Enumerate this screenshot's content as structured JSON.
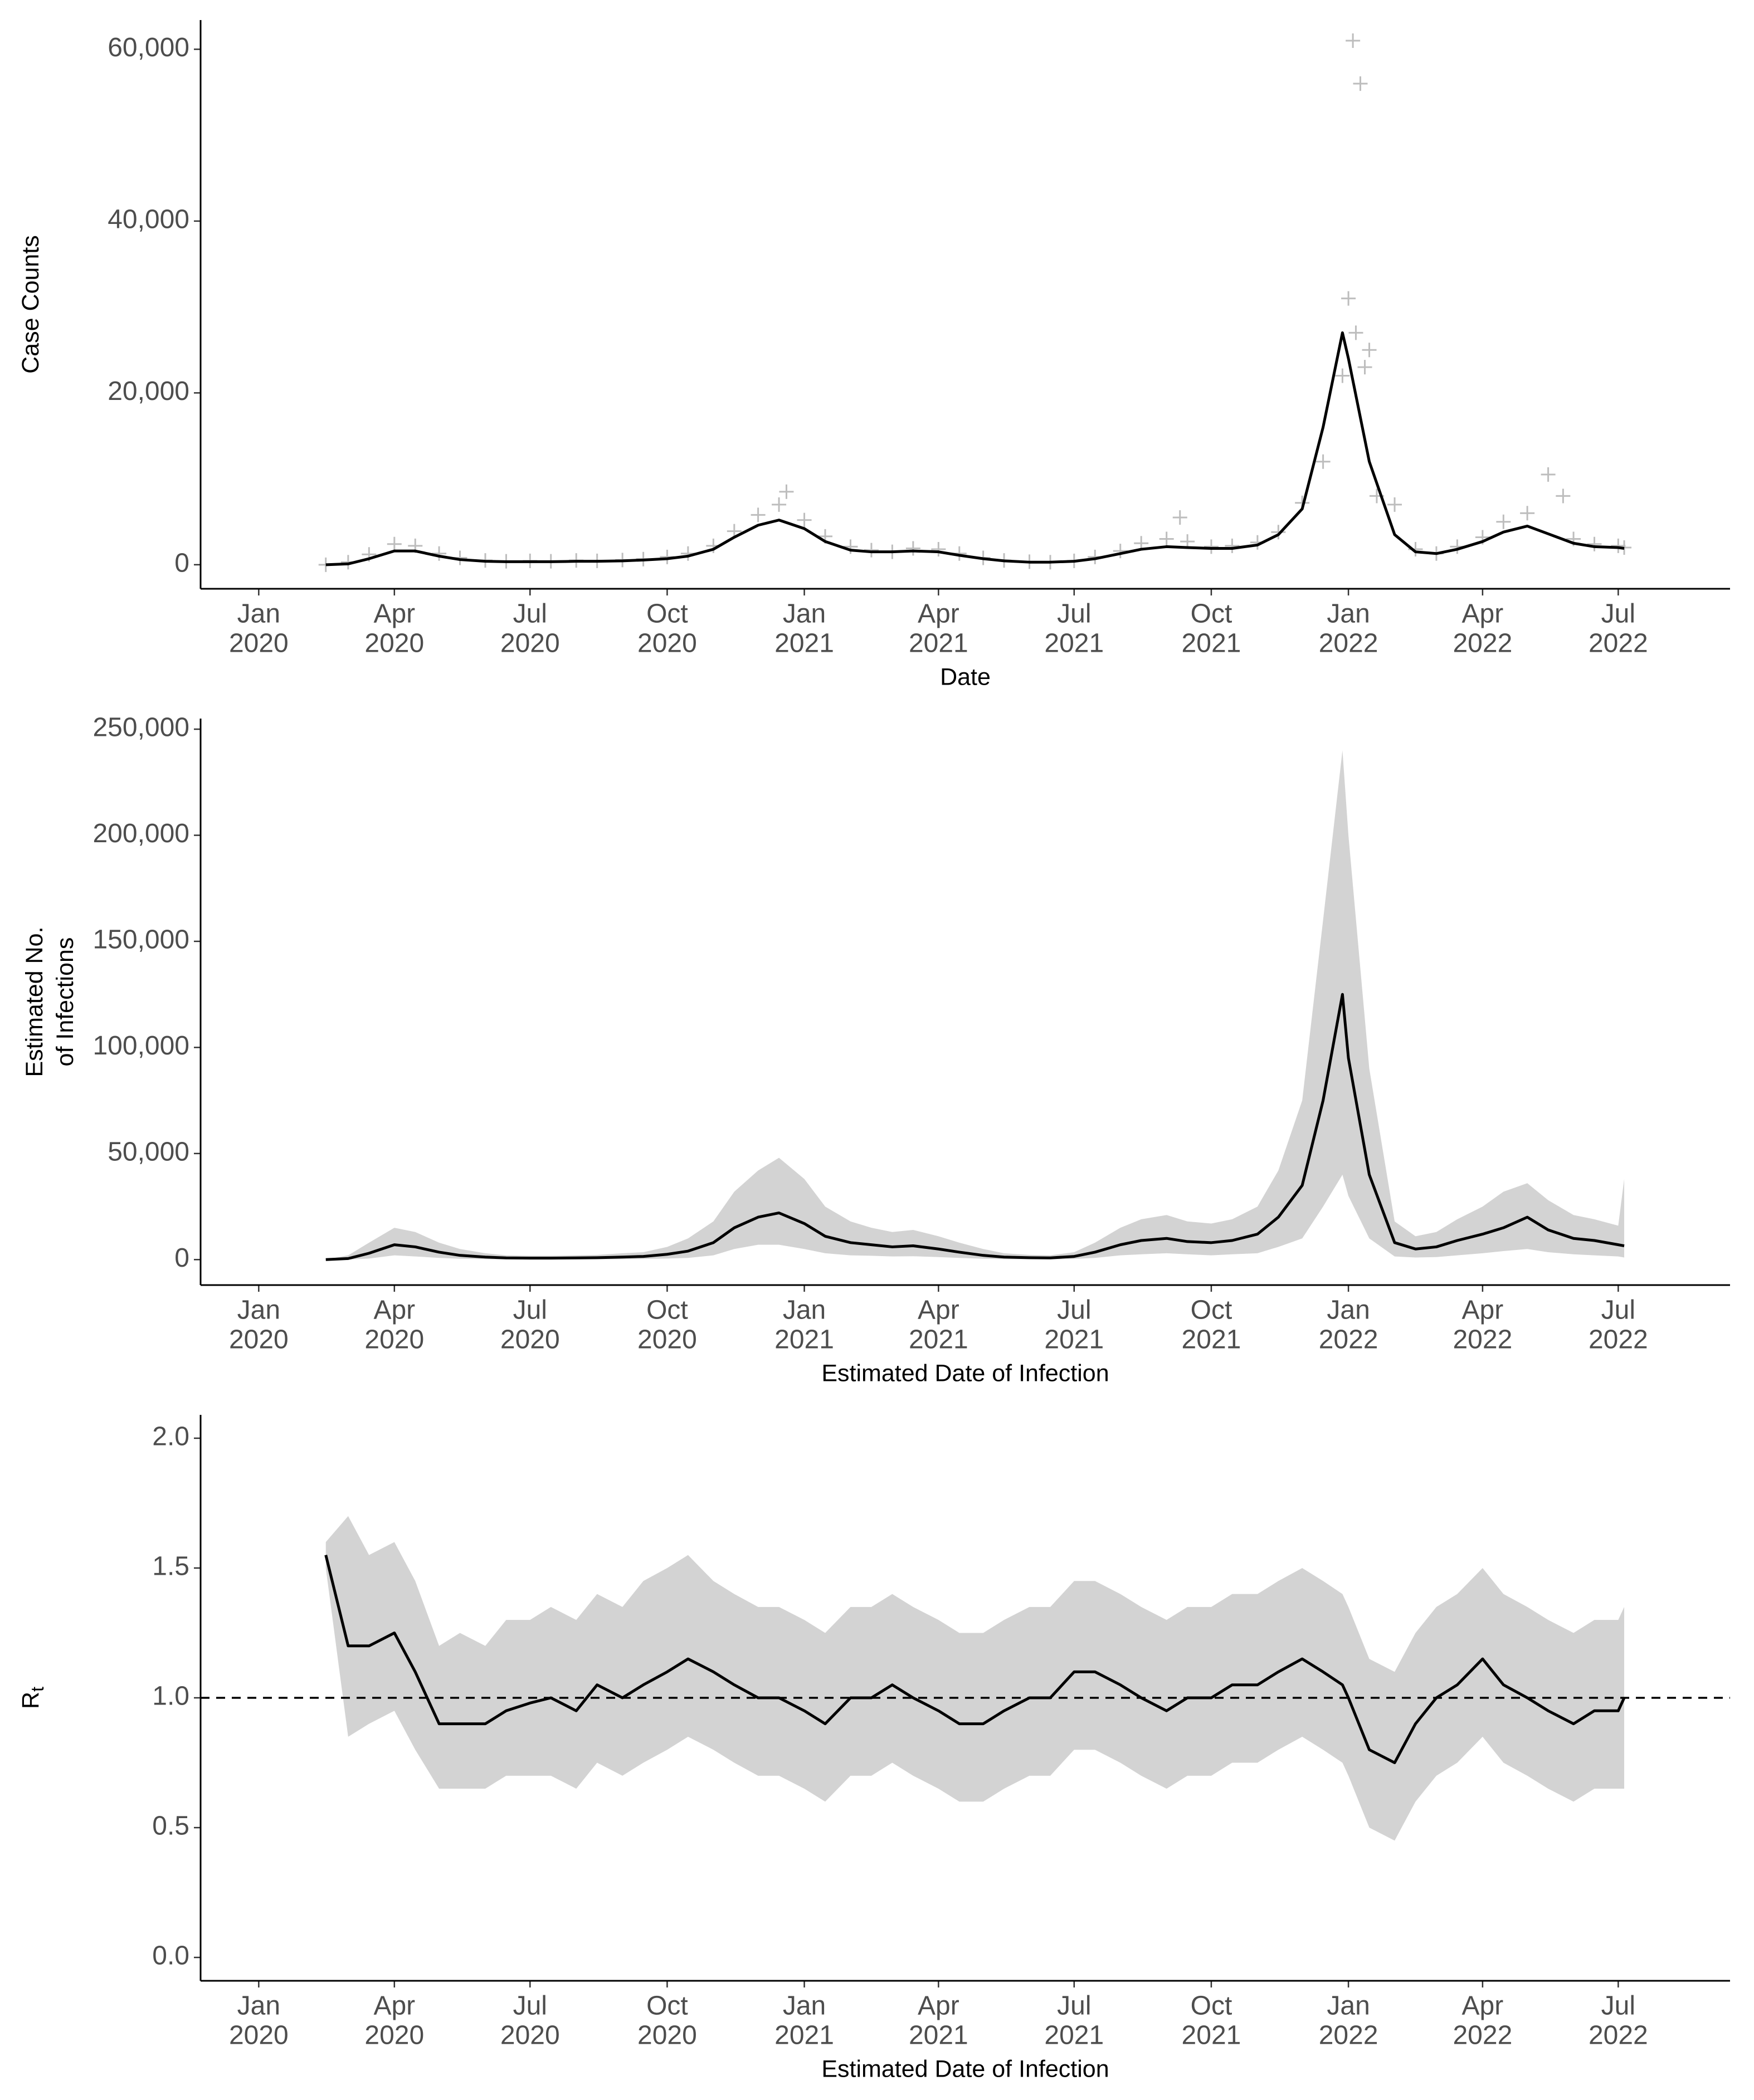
{
  "chart_data": [
    {
      "type": "line",
      "xlabel": "Date",
      "ylabel": [
        "Case Counts"
      ],
      "x": [
        "2020-02-15",
        "2020-03-01",
        "2020-03-15",
        "2020-04-01",
        "2020-04-15",
        "2020-05-01",
        "2020-05-15",
        "2020-06-01",
        "2020-06-15",
        "2020-07-01",
        "2020-07-15",
        "2020-08-01",
        "2020-08-15",
        "2020-09-01",
        "2020-09-15",
        "2020-10-01",
        "2020-10-15",
        "2020-11-01",
        "2020-11-15",
        "2020-12-01",
        "2020-12-15",
        "2021-01-01",
        "2021-01-15",
        "2021-02-01",
        "2021-02-15",
        "2021-03-01",
        "2021-03-15",
        "2021-04-01",
        "2021-04-15",
        "2021-05-01",
        "2021-05-15",
        "2021-06-01",
        "2021-06-15",
        "2021-07-01",
        "2021-07-15",
        "2021-08-01",
        "2021-08-15",
        "2021-09-01",
        "2021-09-15",
        "2021-10-01",
        "2021-10-15",
        "2021-11-01",
        "2021-11-15",
        "2021-12-01",
        "2021-12-15",
        "2021-12-28",
        "2022-01-01",
        "2022-01-15",
        "2022-02-01",
        "2022-02-15",
        "2022-03-01",
        "2022-03-15",
        "2022-04-01",
        "2022-04-15",
        "2022-05-01",
        "2022-05-15",
        "2022-06-01",
        "2022-06-15",
        "2022-07-01",
        "2022-07-05"
      ],
      "series": [
        {
          "type": "scatter",
          "color": "#bdbdbd",
          "values": [
            0,
            300,
            1200,
            2400,
            2200,
            1300,
            800,
            500,
            400,
            450,
            400,
            500,
            450,
            550,
            650,
            900,
            1300,
            2200,
            3900,
            5800,
            7000,
            5200,
            3300,
            2100,
            1700,
            1500,
            1900,
            1800,
            1300,
            800,
            500,
            350,
            300,
            450,
            900,
            1600,
            2500,
            3000,
            2700,
            2100,
            2200,
            2600,
            3800,
            7200,
            12000,
            22000,
            31000,
            25000,
            7000,
            1800,
            1300,
            2100,
            3200,
            5000,
            6000,
            10500,
            3000,
            2400,
            2200,
            2000
          ]
        },
        {
          "type": "scatter",
          "color": "#bdbdbd",
          "x": [
            "2022-01-04",
            "2022-01-09",
            "2022-01-06",
            "2022-01-12",
            "2022-01-20",
            "2020-12-20",
            "2021-09-10",
            "2022-05-25"
          ],
          "values": [
            61000,
            56000,
            27000,
            23000,
            8000,
            8500,
            5500,
            8000
          ]
        },
        {
          "type": "line",
          "color": "#000000",
          "values": [
            0,
            100,
            700,
            1600,
            1600,
            1000,
            600,
            400,
            350,
            350,
            350,
            400,
            400,
            450,
            550,
            700,
            1000,
            1800,
            3200,
            4600,
            5200,
            4200,
            2700,
            1700,
            1500,
            1500,
            1600,
            1500,
            1100,
            700,
            450,
            300,
            300,
            400,
            700,
            1300,
            1800,
            2100,
            2000,
            1900,
            1900,
            2300,
            3500,
            6500,
            16000,
            27000,
            24000,
            12000,
            3500,
            1500,
            1300,
            1800,
            2700,
            3800,
            4500,
            3600,
            2500,
            2100,
            2000,
            1900
          ]
        }
      ],
      "xlim": [
        "2019-11-23",
        "2022-09-14"
      ],
      "xticks": [
        {
          "value": "2020-01-01",
          "label": [
            "Jan",
            "2020"
          ]
        },
        {
          "value": "2020-04-01",
          "label": [
            "Apr",
            "2020"
          ]
        },
        {
          "value": "2020-07-01",
          "label": [
            "Jul",
            "2020"
          ]
        },
        {
          "value": "2020-10-01",
          "label": [
            "Oct",
            "2020"
          ]
        },
        {
          "value": "2021-01-01",
          "label": [
            "Jan",
            "2021"
          ]
        },
        {
          "value": "2021-04-01",
          "label": [
            "Apr",
            "2021"
          ]
        },
        {
          "value": "2021-07-01",
          "label": [
            "Jul",
            "2021"
          ]
        },
        {
          "value": "2021-10-01",
          "label": [
            "Oct",
            "2021"
          ]
        },
        {
          "value": "2022-01-01",
          "label": [
            "Jan",
            "2022"
          ]
        },
        {
          "value": "2022-04-01",
          "label": [
            "Apr",
            "2022"
          ]
        },
        {
          "value": "2022-07-01",
          "label": [
            "Jul",
            "2022"
          ]
        }
      ],
      "ylim": [
        -2800,
        63400
      ],
      "yticks": [
        0,
        {
          "value": 20000,
          "label": "20,000"
        },
        {
          "value": 40000,
          "label": "40,000"
        },
        {
          "value": 60000,
          "label": "60,000"
        }
      ]
    },
    {
      "type": "line",
      "xlabel": "Estimated Date of Infection",
      "ylabel": [
        "Estimated No.",
        "of Infections"
      ],
      "x": [
        "2020-02-15",
        "2020-03-01",
        "2020-03-15",
        "2020-04-01",
        "2020-04-15",
        "2020-05-01",
        "2020-05-15",
        "2020-06-01",
        "2020-06-15",
        "2020-07-01",
        "2020-07-15",
        "2020-08-01",
        "2020-08-15",
        "2020-09-01",
        "2020-09-15",
        "2020-10-01",
        "2020-10-15",
        "2020-11-01",
        "2020-11-15",
        "2020-12-01",
        "2020-12-15",
        "2021-01-01",
        "2021-01-15",
        "2021-02-01",
        "2021-02-15",
        "2021-03-01",
        "2021-03-15",
        "2021-04-01",
        "2021-04-15",
        "2021-05-01",
        "2021-05-15",
        "2021-06-01",
        "2021-06-15",
        "2021-07-01",
        "2021-07-15",
        "2021-08-01",
        "2021-08-15",
        "2021-09-01",
        "2021-09-15",
        "2021-10-01",
        "2021-10-15",
        "2021-11-01",
        "2021-11-15",
        "2021-12-01",
        "2021-12-15",
        "2021-12-28",
        "2022-01-01",
        "2022-01-15",
        "2022-02-01",
        "2022-02-15",
        "2022-03-01",
        "2022-03-15",
        "2022-04-01",
        "2022-04-15",
        "2022-05-01",
        "2022-05-15",
        "2022-06-01",
        "2022-06-15",
        "2022-07-01",
        "2022-07-05"
      ],
      "series": [
        {
          "type": "band",
          "color": "#d3d3d3",
          "upper": [
            0,
            2000,
            8000,
            15000,
            13000,
            8000,
            5000,
            3000,
            2000,
            1800,
            1800,
            2000,
            2200,
            3000,
            3500,
            6000,
            10000,
            18000,
            32000,
            42000,
            48000,
            38000,
            25000,
            18000,
            15000,
            13000,
            14000,
            11000,
            8000,
            5000,
            3000,
            2200,
            2000,
            3500,
            8000,
            15000,
            19000,
            21000,
            18000,
            17000,
            19000,
            25000,
            42000,
            75000,
            160000,
            240000,
            200000,
            90000,
            18000,
            11000,
            13000,
            19000,
            25000,
            32000,
            36000,
            28000,
            21000,
            19000,
            16000,
            38000
          ],
          "lower": [
            0,
            0,
            500,
            2000,
            1500,
            800,
            400,
            200,
            100,
            100,
            100,
            100,
            150,
            200,
            300,
            500,
            800,
            2000,
            5000,
            7000,
            7000,
            5000,
            3000,
            2000,
            1800,
            1500,
            1600,
            1200,
            800,
            400,
            200,
            150,
            100,
            300,
            800,
            2000,
            2500,
            3000,
            2500,
            2000,
            2500,
            3000,
            6000,
            10000,
            25000,
            40000,
            30000,
            10000,
            1500,
            1000,
            1200,
            2000,
            3000,
            4000,
            5000,
            3500,
            2500,
            2000,
            1500,
            1000
          ]
        },
        {
          "type": "line",
          "color": "#000000",
          "values": [
            0,
            500,
            3000,
            7000,
            6000,
            3500,
            2000,
            1200,
            800,
            700,
            700,
            800,
            900,
            1200,
            1500,
            2500,
            4000,
            8000,
            15000,
            20000,
            22000,
            17000,
            11000,
            8000,
            7000,
            6000,
            6500,
            5000,
            3500,
            2000,
            1200,
            900,
            800,
            1500,
            3500,
            7000,
            9000,
            10000,
            8500,
            8000,
            9000,
            12000,
            20000,
            35000,
            75000,
            125000,
            95000,
            40000,
            8000,
            5000,
            6000,
            9000,
            12000,
            15000,
            20000,
            14000,
            10000,
            9000,
            7000,
            6500
          ]
        }
      ],
      "xlim": [
        "2019-11-23",
        "2022-09-14"
      ],
      "xticks": [
        {
          "value": "2020-01-01",
          "label": [
            "Jan",
            "2020"
          ]
        },
        {
          "value": "2020-04-01",
          "label": [
            "Apr",
            "2020"
          ]
        },
        {
          "value": "2020-07-01",
          "label": [
            "Jul",
            "2020"
          ]
        },
        {
          "value": "2020-10-01",
          "label": [
            "Oct",
            "2020"
          ]
        },
        {
          "value": "2021-01-01",
          "label": [
            "Jan",
            "2021"
          ]
        },
        {
          "value": "2021-04-01",
          "label": [
            "Apr",
            "2021"
          ]
        },
        {
          "value": "2021-07-01",
          "label": [
            "Jul",
            "2021"
          ]
        },
        {
          "value": "2021-10-01",
          "label": [
            "Oct",
            "2021"
          ]
        },
        {
          "value": "2022-01-01",
          "label": [
            "Jan",
            "2022"
          ]
        },
        {
          "value": "2022-04-01",
          "label": [
            "Apr",
            "2022"
          ]
        },
        {
          "value": "2022-07-01",
          "label": [
            "Jul",
            "2022"
          ]
        }
      ],
      "ylim": [
        -12000,
        255000
      ],
      "yticks": [
        0,
        {
          "value": 50000,
          "label": "50,000"
        },
        {
          "value": 100000,
          "label": "100,000"
        },
        {
          "value": 150000,
          "label": "150,000"
        },
        {
          "value": 200000,
          "label": "200,000"
        },
        {
          "value": 250000,
          "label": "250,000"
        }
      ]
    },
    {
      "type": "line",
      "xlabel": "Estimated Date of Infection",
      "ylabel": [
        "R"
      ],
      "ylabel_subscript": "t",
      "hline": 1,
      "x": [
        "2020-02-15",
        "2020-03-01",
        "2020-03-15",
        "2020-04-01",
        "2020-04-15",
        "2020-05-01",
        "2020-05-15",
        "2020-06-01",
        "2020-06-15",
        "2020-07-01",
        "2020-07-15",
        "2020-08-01",
        "2020-08-15",
        "2020-09-01",
        "2020-09-15",
        "2020-10-01",
        "2020-10-15",
        "2020-11-01",
        "2020-11-15",
        "2020-12-01",
        "2020-12-15",
        "2021-01-01",
        "2021-01-15",
        "2021-02-01",
        "2021-02-15",
        "2021-03-01",
        "2021-03-15",
        "2021-04-01",
        "2021-04-15",
        "2021-05-01",
        "2021-05-15",
        "2021-06-01",
        "2021-06-15",
        "2021-07-01",
        "2021-07-15",
        "2021-08-01",
        "2021-08-15",
        "2021-09-01",
        "2021-09-15",
        "2021-10-01",
        "2021-10-15",
        "2021-11-01",
        "2021-11-15",
        "2021-12-01",
        "2021-12-15",
        "2021-12-28",
        "2022-01-01",
        "2022-01-15",
        "2022-02-01",
        "2022-02-15",
        "2022-03-01",
        "2022-03-15",
        "2022-04-01",
        "2022-04-15",
        "2022-05-01",
        "2022-05-15",
        "2022-06-01",
        "2022-06-15",
        "2022-07-01",
        "2022-07-05"
      ],
      "series": [
        {
          "type": "band",
          "color": "#d3d3d3",
          "upper": [
            1.6,
            1.7,
            1.55,
            1.6,
            1.45,
            1.2,
            1.25,
            1.2,
            1.3,
            1.3,
            1.35,
            1.3,
            1.4,
            1.35,
            1.45,
            1.5,
            1.55,
            1.45,
            1.4,
            1.35,
            1.35,
            1.3,
            1.25,
            1.35,
            1.35,
            1.4,
            1.35,
            1.3,
            1.25,
            1.25,
            1.3,
            1.35,
            1.35,
            1.45,
            1.45,
            1.4,
            1.35,
            1.3,
            1.35,
            1.35,
            1.4,
            1.4,
            1.45,
            1.5,
            1.45,
            1.4,
            1.35,
            1.15,
            1.1,
            1.25,
            1.35,
            1.4,
            1.5,
            1.4,
            1.35,
            1.3,
            1.25,
            1.3,
            1.3,
            1.35
          ],
          "lower": [
            1.5,
            0.85,
            0.9,
            0.95,
            0.8,
            0.65,
            0.65,
            0.65,
            0.7,
            0.7,
            0.7,
            0.65,
            0.75,
            0.7,
            0.75,
            0.8,
            0.85,
            0.8,
            0.75,
            0.7,
            0.7,
            0.65,
            0.6,
            0.7,
            0.7,
            0.75,
            0.7,
            0.65,
            0.6,
            0.6,
            0.65,
            0.7,
            0.7,
            0.8,
            0.8,
            0.75,
            0.7,
            0.65,
            0.7,
            0.7,
            0.75,
            0.75,
            0.8,
            0.85,
            0.8,
            0.75,
            0.7,
            0.5,
            0.45,
            0.6,
            0.7,
            0.75,
            0.85,
            0.75,
            0.7,
            0.65,
            0.6,
            0.65,
            0.65,
            0.65
          ]
        },
        {
          "type": "line",
          "color": "#000000",
          "values": [
            1.55,
            1.2,
            1.2,
            1.25,
            1.1,
            0.9,
            0.9,
            0.9,
            0.95,
            0.98,
            1.0,
            0.95,
            1.05,
            1.0,
            1.05,
            1.1,
            1.15,
            1.1,
            1.05,
            1.0,
            1.0,
            0.95,
            0.9,
            1.0,
            1.0,
            1.05,
            1.0,
            0.95,
            0.9,
            0.9,
            0.95,
            1.0,
            1.0,
            1.1,
            1.1,
            1.05,
            1.0,
            0.95,
            1.0,
            1.0,
            1.05,
            1.05,
            1.1,
            1.15,
            1.1,
            1.05,
            1.0,
            0.8,
            0.75,
            0.9,
            1.0,
            1.05,
            1.15,
            1.05,
            1.0,
            0.95,
            0.9,
            0.95,
            0.95,
            1.0
          ]
        }
      ],
      "xlim": [
        "2019-11-23",
        "2022-09-14"
      ],
      "xticks": [
        {
          "value": "2020-01-01",
          "label": [
            "Jan",
            "2020"
          ]
        },
        {
          "value": "2020-04-01",
          "label": [
            "Apr",
            "2020"
          ]
        },
        {
          "value": "2020-07-01",
          "label": [
            "Jul",
            "2020"
          ]
        },
        {
          "value": "2020-10-01",
          "label": [
            "Oct",
            "2020"
          ]
        },
        {
          "value": "2021-01-01",
          "label": [
            "Jan",
            "2021"
          ]
        },
        {
          "value": "2021-04-01",
          "label": [
            "Apr",
            "2021"
          ]
        },
        {
          "value": "2021-07-01",
          "label": [
            "Jul",
            "2021"
          ]
        },
        {
          "value": "2021-10-01",
          "label": [
            "Oct",
            "2021"
          ]
        },
        {
          "value": "2022-01-01",
          "label": [
            "Jan",
            "2022"
          ]
        },
        {
          "value": "2022-04-01",
          "label": [
            "Apr",
            "2022"
          ]
        },
        {
          "value": "2022-07-01",
          "label": [
            "Jul",
            "2022"
          ]
        }
      ],
      "ylim": [
        -0.09,
        2.09
      ],
      "yticks": [
        {
          "value": 0,
          "label": "0.0"
        },
        0.5,
        {
          "value": 1,
          "label": "1.0"
        },
        1.5,
        {
          "value": 2,
          "label": "2.0"
        }
      ]
    }
  ]
}
